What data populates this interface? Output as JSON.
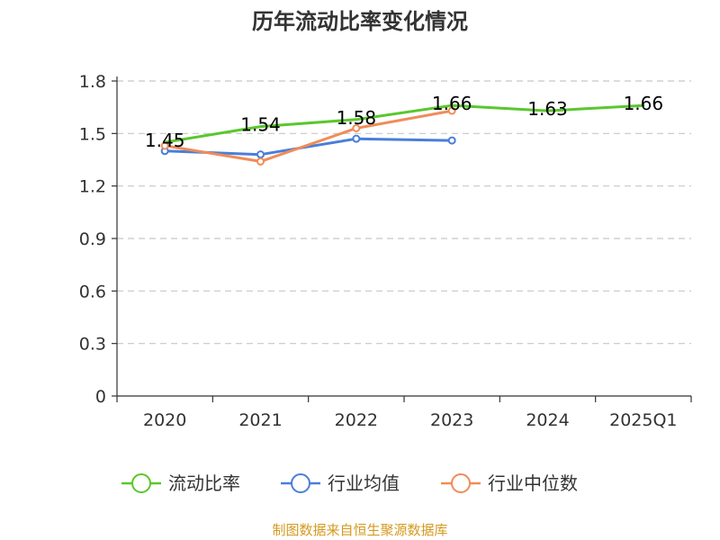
{
  "chart_data": {
    "type": "line",
    "title": "历年流动比率变化情况",
    "xlabel": "",
    "ylabel": "",
    "categories": [
      "2020",
      "2021",
      "2022",
      "2023",
      "2024",
      "2025Q1"
    ],
    "ylim": [
      0,
      1.8
    ],
    "yticks": [
      "0",
      "0.3",
      "0.6",
      "0.9",
      "1.2",
      "1.5",
      "1.8"
    ],
    "grid": true,
    "legend_position": "bottom",
    "series": [
      {
        "name": "流动比率",
        "color": "#5ac72e",
        "values": [
          1.45,
          1.54,
          1.58,
          1.66,
          1.63,
          1.66
        ],
        "labels": [
          "1.45",
          "1.54",
          "1.58",
          "1.66",
          "1.63",
          "1.66"
        ],
        "show_markers": false
      },
      {
        "name": "行业均值",
        "color": "#4a7ed9",
        "values": [
          1.4,
          1.38,
          1.47,
          1.46,
          null,
          null
        ],
        "show_markers": true
      },
      {
        "name": "行业中位数",
        "color": "#f08c58",
        "values": [
          1.43,
          1.34,
          1.53,
          1.63,
          null,
          null
        ],
        "show_markers": true
      }
    ]
  },
  "source": "制图数据来自恒生聚源数据库"
}
